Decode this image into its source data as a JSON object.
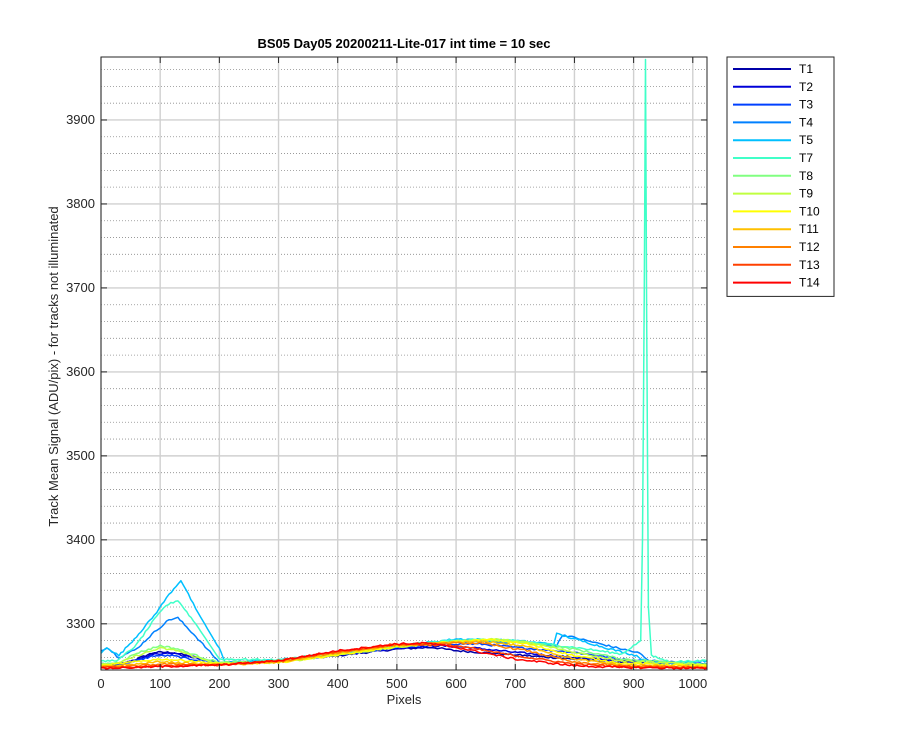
{
  "chart_data": {
    "type": "line",
    "title": "BS05 Day05 20200211-Lite-017 int time = 10 sec",
    "xlabel": "Pixels",
    "ylabel": "Track Mean Signal (ADU/pix) - for tracks not illuminated",
    "xlim": [
      0,
      1024
    ],
    "ylim": [
      3245,
      3975
    ],
    "xticks": [
      0,
      100,
      200,
      300,
      400,
      500,
      600,
      700,
      800,
      900,
      1000
    ],
    "yticks": [
      3300,
      3400,
      3500,
      3600,
      3700,
      3800,
      3900
    ],
    "grid": true,
    "minor_grid_y": true,
    "legend_position": "outside-right-top",
    "series": [
      {
        "name": "T1",
        "color": "#0000a8",
        "x": [
          0,
          30,
          60,
          90,
          120,
          160,
          200,
          300,
          400,
          500,
          560,
          600,
          700,
          800,
          880,
          1024
        ],
        "y": [
          3250,
          3251,
          3258,
          3266,
          3266,
          3260,
          3253,
          3255,
          3262,
          3270,
          3272,
          3268,
          3263,
          3258,
          3254,
          3252
        ]
      },
      {
        "name": "T2",
        "color": "#0000d8",
        "x": [
          0,
          30,
          60,
          90,
          120,
          160,
          200,
          300,
          400,
          500,
          570,
          620,
          700,
          800,
          880,
          1024
        ],
        "y": [
          3250,
          3251,
          3257,
          3264,
          3265,
          3259,
          3253,
          3256,
          3263,
          3271,
          3274,
          3272,
          3266,
          3260,
          3256,
          3252
        ]
      },
      {
        "name": "T3",
        "color": "#0040ff",
        "x": [
          0,
          30,
          60,
          90,
          120,
          150,
          200,
          300,
          400,
          500,
          580,
          640,
          700,
          800,
          880,
          1024
        ],
        "y": [
          3252,
          3252,
          3256,
          3262,
          3262,
          3258,
          3254,
          3255,
          3263,
          3272,
          3276,
          3276,
          3272,
          3266,
          3258,
          3252
        ]
      },
      {
        "name": "T4",
        "color": "#0080ff",
        "x": [
          0,
          10,
          30,
          60,
          90,
          115,
          130,
          160,
          200,
          300,
          400,
          500,
          600,
          700,
          770,
          780,
          850,
          910,
          930,
          1024
        ],
        "y": [
          3268,
          3272,
          3260,
          3270,
          3290,
          3305,
          3307,
          3285,
          3254,
          3256,
          3264,
          3273,
          3279,
          3278,
          3274,
          3287,
          3275,
          3265,
          3253,
          3252
        ]
      },
      {
        "name": "T5",
        "color": "#00c0ff",
        "x": [
          0,
          10,
          30,
          60,
          90,
          115,
          135,
          160,
          200,
          210,
          300,
          400,
          500,
          600,
          700,
          765,
          770,
          850,
          905,
          925,
          1024
        ],
        "y": [
          3265,
          3272,
          3262,
          3285,
          3310,
          3335,
          3352,
          3318,
          3270,
          3254,
          3257,
          3265,
          3273,
          3282,
          3280,
          3276,
          3288,
          3272,
          3262,
          3253,
          3256
        ]
      },
      {
        "name": "T7",
        "color": "#40ffc8",
        "x": [
          0,
          30,
          60,
          90,
          110,
          130,
          160,
          200,
          300,
          400,
          500,
          600,
          700,
          800,
          880,
          912,
          915,
          918,
          920,
          922,
          925,
          930,
          960,
          1024
        ],
        "y": [
          3255,
          3257,
          3275,
          3305,
          3322,
          3328,
          3300,
          3258,
          3257,
          3266,
          3274,
          3281,
          3280,
          3272,
          3264,
          3280,
          3400,
          3700,
          3972,
          3680,
          3320,
          3262,
          3255,
          3256
        ]
      },
      {
        "name": "T8",
        "color": "#80ff80",
        "x": [
          0,
          30,
          60,
          100,
          130,
          170,
          200,
          300,
          400,
          500,
          600,
          650,
          700,
          800,
          880,
          1024
        ],
        "y": [
          3252,
          3254,
          3265,
          3274,
          3270,
          3260,
          3254,
          3255,
          3264,
          3273,
          3279,
          3281,
          3279,
          3270,
          3258,
          3252
        ]
      },
      {
        "name": "T9",
        "color": "#c0ff40",
        "x": [
          0,
          30,
          60,
          100,
          130,
          170,
          200,
          300,
          400,
          500,
          600,
          660,
          720,
          800,
          880,
          1024
        ],
        "y": [
          3251,
          3253,
          3262,
          3271,
          3268,
          3258,
          3253,
          3254,
          3263,
          3272,
          3279,
          3282,
          3278,
          3266,
          3256,
          3251
        ]
      },
      {
        "name": "T10",
        "color": "#ffff00",
        "x": [
          0,
          60,
          100,
          150,
          200,
          300,
          400,
          500,
          600,
          660,
          720,
          800,
          880,
          1024
        ],
        "y": [
          3250,
          3255,
          3258,
          3256,
          3252,
          3254,
          3263,
          3273,
          3279,
          3281,
          3276,
          3262,
          3253,
          3250
        ]
      },
      {
        "name": "T11",
        "color": "#ffc000",
        "x": [
          0,
          60,
          100,
          150,
          200,
          300,
          400,
          500,
          600,
          650,
          720,
          800,
          880,
          1024
        ],
        "y": [
          3249,
          3252,
          3255,
          3253,
          3251,
          3254,
          3265,
          3274,
          3278,
          3279,
          3273,
          3258,
          3251,
          3249
        ]
      },
      {
        "name": "T12",
        "color": "#ff8000",
        "x": [
          0,
          60,
          100,
          150,
          200,
          300,
          400,
          500,
          600,
          640,
          720,
          800,
          880,
          1024
        ],
        "y": [
          3248,
          3250,
          3252,
          3252,
          3251,
          3255,
          3266,
          3275,
          3277,
          3277,
          3268,
          3254,
          3250,
          3248
        ]
      },
      {
        "name": "T13",
        "color": "#ff4000",
        "x": [
          0,
          60,
          100,
          150,
          200,
          300,
          400,
          500,
          600,
          700,
          800,
          880,
          1024
        ],
        "y": [
          3248,
          3249,
          3250,
          3251,
          3251,
          3256,
          3267,
          3276,
          3274,
          3262,
          3252,
          3249,
          3248
        ]
      },
      {
        "name": "T14",
        "color": "#ff0000",
        "x": [
          0,
          60,
          100,
          150,
          200,
          300,
          400,
          500,
          550,
          600,
          700,
          800,
          880,
          1024
        ],
        "y": [
          3247,
          3248,
          3249,
          3250,
          3251,
          3256,
          3268,
          3276,
          3277,
          3272,
          3258,
          3250,
          3248,
          3247
        ]
      }
    ]
  }
}
